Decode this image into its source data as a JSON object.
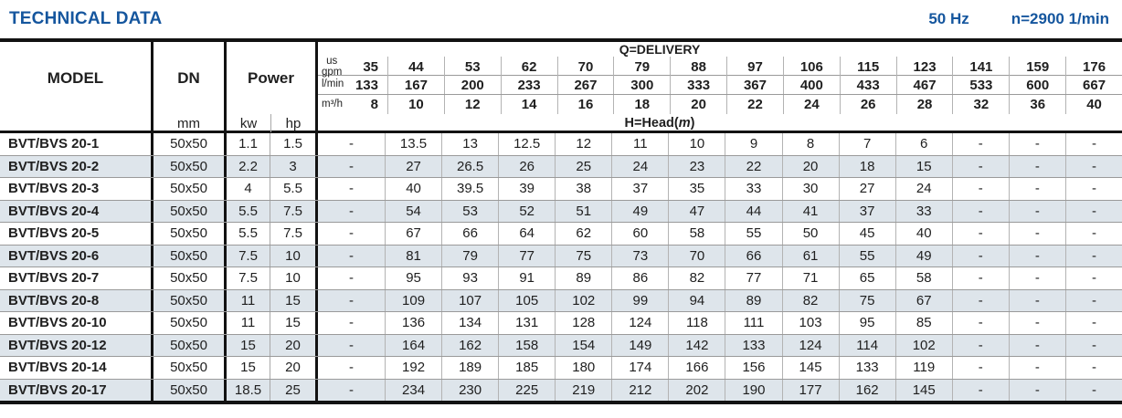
{
  "page": {
    "title": "TECHNICAL DATA",
    "frequency": "50 Hz",
    "speed": "n=2900 1/min"
  },
  "colors": {
    "accent": "#15569E",
    "stripe": "#dee5eb"
  },
  "table": {
    "delivery_title": "Q=DELIVERY",
    "head_title": {
      "pre": "H=Head(",
      "unit": "m",
      "post": ")"
    },
    "columns": {
      "model": "MODEL",
      "dn": "DN",
      "dn_unit": "mm",
      "power": "Power",
      "power_kw": "kw",
      "power_hp": "hp"
    },
    "flow_units": [
      {
        "label": "us\ngpm",
        "values": [
          35,
          44,
          53,
          62,
          70,
          79,
          88,
          97,
          106,
          115,
          123,
          141,
          159,
          176
        ]
      },
      {
        "label": "l/min",
        "values": [
          133,
          167,
          200,
          233,
          267,
          300,
          333,
          367,
          400,
          433,
          467,
          533,
          600,
          667
        ]
      },
      {
        "label": "m³/h",
        "values": [
          8,
          10,
          12,
          14,
          16,
          18,
          20,
          22,
          24,
          26,
          28,
          32,
          36,
          40
        ]
      }
    ],
    "rows": [
      {
        "model": "BVT/BVS 20-1",
        "dn": "50x50",
        "kw": "1.1",
        "hp": "1.5",
        "head": [
          "-",
          "13.5",
          "13",
          "12.5",
          "12",
          "11",
          "10",
          "9",
          "8",
          "7",
          "6",
          "-",
          "-",
          "-"
        ]
      },
      {
        "model": "BVT/BVS 20-2",
        "dn": "50x50",
        "kw": "2.2",
        "hp": "3",
        "head": [
          "-",
          "27",
          "26.5",
          "26",
          "25",
          "24",
          "23",
          "22",
          "20",
          "18",
          "15",
          "-",
          "-",
          "-"
        ]
      },
      {
        "model": "BVT/BVS 20-3",
        "dn": "50x50",
        "kw": "4",
        "hp": "5.5",
        "head": [
          "-",
          "40",
          "39.5",
          "39",
          "38",
          "37",
          "35",
          "33",
          "30",
          "27",
          "24",
          "-",
          "-",
          "-"
        ]
      },
      {
        "model": "BVT/BVS 20-4",
        "dn": "50x50",
        "kw": "5.5",
        "hp": "7.5",
        "head": [
          "-",
          "54",
          "53",
          "52",
          "51",
          "49",
          "47",
          "44",
          "41",
          "37",
          "33",
          "-",
          "-",
          "-"
        ]
      },
      {
        "model": "BVT/BVS 20-5",
        "dn": "50x50",
        "kw": "5.5",
        "hp": "7.5",
        "head": [
          "-",
          "67",
          "66",
          "64",
          "62",
          "60",
          "58",
          "55",
          "50",
          "45",
          "40",
          "-",
          "-",
          "-"
        ]
      },
      {
        "model": "BVT/BVS 20-6",
        "dn": "50x50",
        "kw": "7.5",
        "hp": "10",
        "head": [
          "-",
          "81",
          "79",
          "77",
          "75",
          "73",
          "70",
          "66",
          "61",
          "55",
          "49",
          "-",
          "-",
          "-"
        ]
      },
      {
        "model": "BVT/BVS 20-7",
        "dn": "50x50",
        "kw": "7.5",
        "hp": "10",
        "head": [
          "-",
          "95",
          "93",
          "91",
          "89",
          "86",
          "82",
          "77",
          "71",
          "65",
          "58",
          "-",
          "-",
          "-"
        ]
      },
      {
        "model": "BVT/BVS 20-8",
        "dn": "50x50",
        "kw": "11",
        "hp": "15",
        "head": [
          "-",
          "109",
          "107",
          "105",
          "102",
          "99",
          "94",
          "89",
          "82",
          "75",
          "67",
          "-",
          "-",
          "-"
        ]
      },
      {
        "model": "BVT/BVS 20-10",
        "dn": "50x50",
        "kw": "11",
        "hp": "15",
        "head": [
          "-",
          "136",
          "134",
          "131",
          "128",
          "124",
          "118",
          "111",
          "103",
          "95",
          "85",
          "-",
          "-",
          "-"
        ]
      },
      {
        "model": "BVT/BVS 20-12",
        "dn": "50x50",
        "kw": "15",
        "hp": "20",
        "head": [
          "-",
          "164",
          "162",
          "158",
          "154",
          "149",
          "142",
          "133",
          "124",
          "114",
          "102",
          "-",
          "-",
          "-"
        ]
      },
      {
        "model": "BVT/BVS 20-14",
        "dn": "50x50",
        "kw": "15",
        "hp": "20",
        "head": [
          "-",
          "192",
          "189",
          "185",
          "180",
          "174",
          "166",
          "156",
          "145",
          "133",
          "119",
          "-",
          "-",
          "-"
        ]
      },
      {
        "model": "BVT/BVS 20-17",
        "dn": "50x50",
        "kw": "18.5",
        "hp": "25",
        "head": [
          "-",
          "234",
          "230",
          "225",
          "219",
          "212",
          "202",
          "190",
          "177",
          "162",
          "145",
          "-",
          "-",
          "-"
        ]
      }
    ]
  }
}
